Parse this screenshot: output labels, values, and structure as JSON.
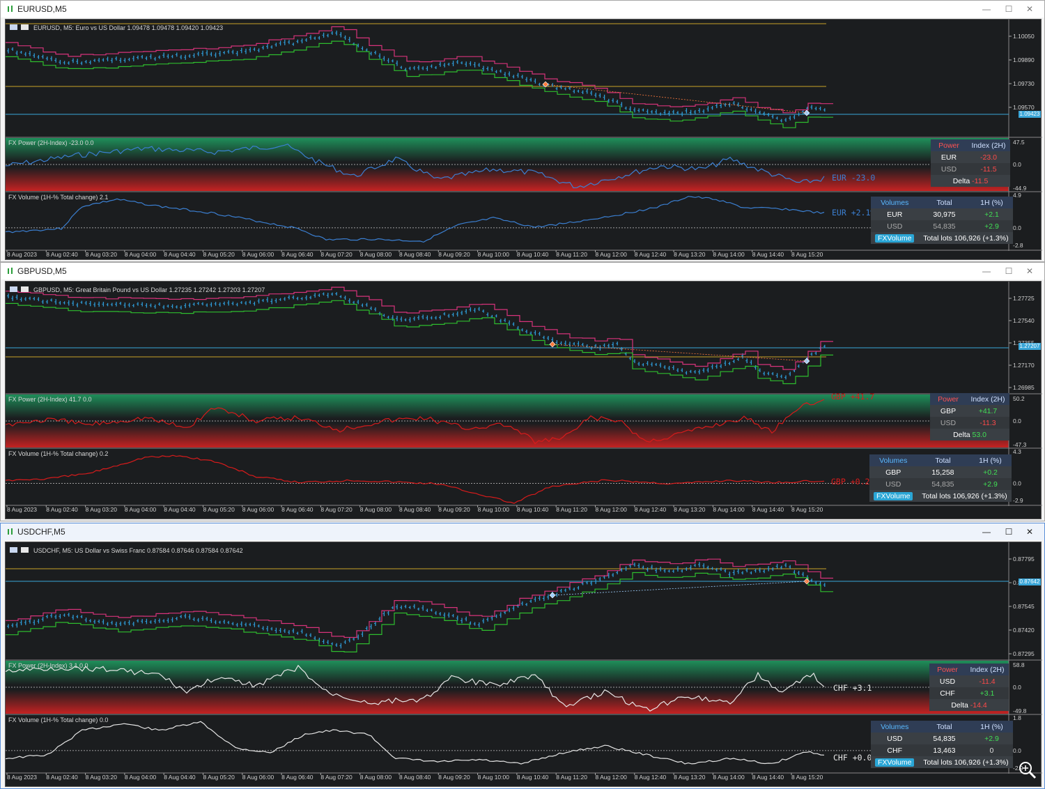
{
  "windows": [
    {
      "title": "EURUSD,M5",
      "symbol_line": "EURUSD, M5:  Euro vs US Dollar  1.09478 1.09478 1.09420 1.09423",
      "price_ticks": [
        "1.10050",
        "1.09890",
        "1.09730",
        "1.09570",
        "1.09423"
      ],
      "current_price": "1.09423",
      "power": {
        "title": "FX Power (2H-Index) -23.0 0.0",
        "ticks": [
          "47.5",
          "0.0",
          "-44.9"
        ],
        "label": "EUR  -23.0",
        "table": {
          "h1": "Power",
          "h2": "Index (2H)",
          "rows": [
            [
              "EUR",
              "-23.0"
            ],
            [
              "USD",
              "-11.5"
            ]
          ],
          "delta_label": "Delta",
          "delta_value": "-11.5"
        }
      },
      "volume": {
        "title": "FX Volume (1H-% Total change)  2.1",
        "ticks": [
          "4.9",
          "0.0",
          "-2.8"
        ],
        "label": "EUR +2.1%",
        "table": {
          "h1": "Volumes",
          "h2": "Total",
          "h3": "1H (%)",
          "rows": [
            [
              "EUR",
              "30,975",
              "+2.1"
            ],
            [
              "USD",
              "54,835",
              "+2.9"
            ]
          ],
          "badge": "FXVolume",
          "footer": "Total lots 106,926 (+1.3%)"
        }
      },
      "time_labels": [
        "8 Aug 2023",
        "8 Aug 02:40",
        "8 Aug 03:20",
        "8 Aug 04:00",
        "8 Aug 04:40",
        "8 Aug 05:20",
        "8 Aug 06:00",
        "8 Aug 06:40",
        "8 Aug 07:20",
        "8 Aug 08:00",
        "8 Aug 08:40",
        "8 Aug 09:20",
        "8 Aug 10:00",
        "8 Aug 10:40",
        "8 Aug 11:20",
        "8 Aug 12:00",
        "8 Aug 12:40",
        "8 Aug 13:20",
        "8 Aug 14:00",
        "8 Aug 14:40",
        "8 Aug 15:20"
      ]
    },
    {
      "title": "GBPUSD,M5",
      "symbol_line": "GBPUSD, M5:  Great Britain Pound vs US Dollar  1.27235 1.27242 1.27203 1.27207",
      "price_ticks": [
        "1.27725",
        "1.27540",
        "1.27355",
        "1.27170",
        "1.26985"
      ],
      "current_price": "1.27207",
      "power": {
        "title": "FX Power (2H-Index) 41.7 0.0",
        "ticks": [
          "50.2",
          "0.0",
          "-47.3"
        ],
        "label": "GBP +41.7",
        "table": {
          "h1": "Power",
          "h2": "Index (2H)",
          "rows": [
            [
              "GBP",
              "+41.7"
            ],
            [
              "USD",
              "-11.3"
            ]
          ],
          "delta_label": "Delta",
          "delta_value": "53.0"
        }
      },
      "volume": {
        "title": "FX Volume (1H-% Total change)  0.2",
        "ticks": [
          "4.3",
          "0.0",
          "-2.9"
        ],
        "label": "GBP +0.2%",
        "table": {
          "h1": "Volumes",
          "h2": "Total",
          "h3": "1H (%)",
          "rows": [
            [
              "GBP",
              "15,258",
              "+0.2"
            ],
            [
              "USD",
              "54,835",
              "+2.9"
            ]
          ],
          "badge": "FXVolume",
          "footer": "Total lots 106,926 (+1.3%)"
        }
      },
      "time_labels": [
        "8 Aug 2023",
        "8 Aug 02:40",
        "8 Aug 03:20",
        "8 Aug 04:00",
        "8 Aug 04:40",
        "8 Aug 05:20",
        "8 Aug 06:00",
        "8 Aug 06:40",
        "8 Aug 07:20",
        "8 Aug 08:00",
        "8 Aug 08:40",
        "8 Aug 09:20",
        "8 Aug 10:00",
        "8 Aug 10:40",
        "8 Aug 11:20",
        "8 Aug 12:00",
        "8 Aug 12:40",
        "8 Aug 13:20",
        "8 Aug 14:00",
        "8 Aug 14:40",
        "8 Aug 15:20"
      ]
    },
    {
      "title": "USDCHF,M5",
      "symbol_line": "USDCHF, M5:  US Dollar vs Swiss Franc  0.87584 0.87646 0.87584 0.87642",
      "price_ticks": [
        "0.87795",
        "0.87670",
        "0.87545",
        "0.87420",
        "0.87295"
      ],
      "current_price": "0.87642",
      "power": {
        "title": "FX Power (2H-Index) 3.1 0.0",
        "ticks": [
          "58.8",
          "0.0",
          "-49.8"
        ],
        "label": "CHF  +3.1",
        "table": {
          "h1": "Power",
          "h2": "Index (2H)",
          "rows": [
            [
              "USD",
              "-11.4"
            ],
            [
              "CHF",
              "+3.1"
            ]
          ],
          "delta_label": "Delta",
          "delta_value": "-14.4"
        }
      },
      "volume": {
        "title": "FX Volume (1H-% Total change)  0.0",
        "ticks": [
          "1.8",
          "0.0",
          "-2.9"
        ],
        "label": "CHF +0.0%",
        "table": {
          "h1": "Volumes",
          "h2": "Total",
          "h3": "1H (%)",
          "rows": [
            [
              "USD",
              "54,835",
              "+2.9"
            ],
            [
              "CHF",
              "13,463",
              "0"
            ]
          ],
          "badge": "FXVolume",
          "footer": "Total lots 106,926 (+1.3%)"
        }
      },
      "time_labels": [
        "8 Aug 2023",
        "8 Aug 02:40",
        "8 Aug 03:20",
        "8 Aug 04:00",
        "8 Aug 04:40",
        "8 Aug 05:20",
        "8 Aug 06:00",
        "8 Aug 06:40",
        "8 Aug 07:20",
        "8 Aug 08:00",
        "8 Aug 08:40",
        "8 Aug 09:20",
        "8 Aug 10:00",
        "8 Aug 10:40",
        "8 Aug 11:20",
        "8 Aug 12:00",
        "8 Aug 12:40",
        "8 Aug 13:20",
        "8 Aug 14:00",
        "8 Aug 14:40",
        "8 Aug 15:20"
      ]
    }
  ],
  "colors": {
    "candles": "#2e9bd6",
    "resist": "#d6337a",
    "support": "#2ebd2e",
    "hline_yellow": "#c9a227",
    "hline_blue": "#3aa6d8",
    "eur_line": "#3b7fd1",
    "gbp_line": "#d81b1b",
    "chf_line": "#e6e6e6"
  },
  "icons": {
    "window_icon": "chart-window-icon",
    "minimize": "minimize-icon",
    "maximize": "maximize-icon",
    "close": "close-icon",
    "zoom": "zoom-icon"
  }
}
